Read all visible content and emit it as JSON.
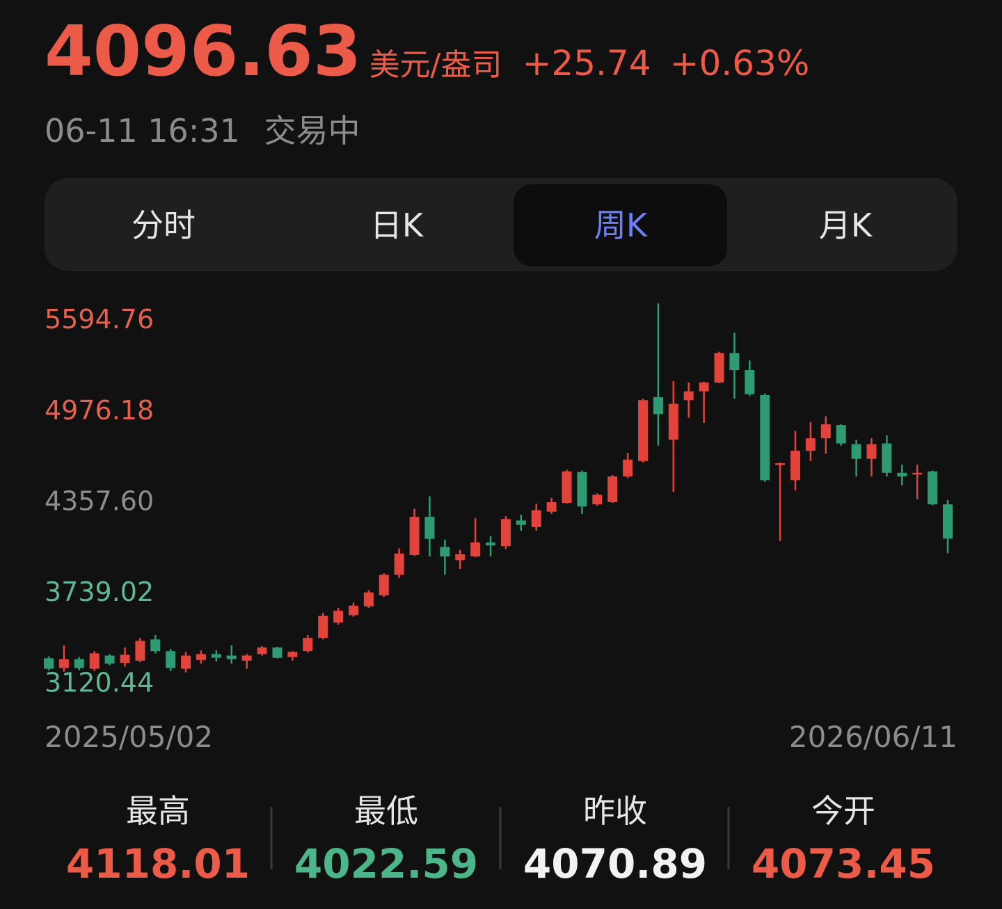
{
  "header": {
    "price": "4096.63",
    "unit": "美元/盎司",
    "change": "+25.74",
    "change_pct": "+0.63%",
    "timestamp": "06-11 16:31",
    "status": "交易中",
    "color": "#ec5a48"
  },
  "tabs": {
    "items": [
      "分时",
      "日K",
      "周K",
      "月K"
    ],
    "active": 2
  },
  "chart_data": {
    "type": "candlestick",
    "up_color": "#e2433b",
    "down_color": "#2f9b72",
    "categories": [
      "2025/05/02",
      null,
      null,
      null,
      null,
      null,
      null,
      null,
      null,
      null,
      null,
      null,
      null,
      null,
      null,
      null,
      null,
      null,
      null,
      null,
      null,
      null,
      null,
      null,
      null,
      null,
      null,
      null,
      null,
      null,
      null,
      null,
      null,
      null,
      null,
      null,
      null,
      null,
      null,
      null,
      null,
      null,
      null,
      null,
      null,
      null,
      null,
      null,
      null,
      null,
      null,
      null,
      null,
      null,
      null,
      null,
      null,
      null,
      null,
      "2026/06/11"
    ],
    "open": [
      3282,
      3215,
      3275,
      3210,
      3300,
      3250,
      3265,
      3410,
      3330,
      3210,
      3270,
      3310,
      3300,
      3265,
      3310,
      3355,
      3290,
      3330,
      3420,
      3525,
      3575,
      3635,
      3710,
      3850,
      3985,
      4245,
      4040,
      3950,
      3975,
      4070,
      4045,
      4220,
      4175,
      4280,
      4340,
      4550,
      4330,
      4345,
      4520,
      4625,
      5060,
      4770,
      5040,
      5100,
      5160,
      5360,
      5245,
      5075,
      4600,
      4495,
      4695,
      4780,
      4870,
      4740,
      4640,
      4745,
      4545,
      4535,
      4555,
      4330
    ],
    "high": [
      3295,
      3370,
      3290,
      3330,
      3310,
      3355,
      3420,
      3440,
      3345,
      3325,
      3335,
      3335,
      3370,
      3310,
      3365,
      3360,
      3330,
      3440,
      3590,
      3625,
      3660,
      3745,
      3860,
      4030,
      4300,
      4385,
      4090,
      4020,
      4235,
      4115,
      4250,
      4260,
      4335,
      4375,
      4565,
      4560,
      4405,
      4530,
      4680,
      5050,
      5699,
      5170,
      5160,
      5165,
      5370,
      5500,
      5310,
      5085,
      4615,
      4830,
      4890,
      4930,
      4875,
      4770,
      4780,
      4800,
      4600,
      4600,
      4560,
      4360
    ],
    "low": [
      3200,
      3190,
      3200,
      3195,
      3235,
      3225,
      3255,
      3315,
      3195,
      3185,
      3245,
      3260,
      3245,
      3210,
      3300,
      3280,
      3265,
      3320,
      3410,
      3510,
      3565,
      3625,
      3700,
      3830,
      3980,
      3975,
      3850,
      3890,
      3970,
      3975,
      4025,
      4150,
      4150,
      4265,
      4335,
      4265,
      4320,
      4340,
      4510,
      4615,
      4730,
      4415,
      4920,
      4885,
      5155,
      5050,
      5070,
      4485,
      4080,
      4425,
      4625,
      4675,
      4730,
      4520,
      4520,
      4520,
      4460,
      4365,
      4325,
      3998
    ],
    "close": [
      3210,
      3275,
      3215,
      3315,
      3245,
      3305,
      3400,
      3330,
      3215,
      3300,
      3310,
      3285,
      3275,
      3300,
      3355,
      3285,
      3325,
      3420,
      3570,
      3605,
      3640,
      3730,
      3850,
      3995,
      4245,
      4095,
      3975,
      3990,
      4070,
      4050,
      4230,
      4190,
      4290,
      4345,
      4555,
      4315,
      4395,
      4520,
      4635,
      5040,
      4945,
      5015,
      5100,
      5160,
      5360,
      5245,
      5080,
      4495,
      4610,
      4695,
      4780,
      4875,
      4745,
      4640,
      4740,
      4545,
      4520,
      4545,
      4330,
      4096.63
    ],
    "ylim": [
      3080,
      5700
    ],
    "yticks": [
      3120.44,
      3739.02,
      {
        "value": 4357.6,
        "label": "4357.60"
      },
      4976.18,
      5594.76
    ],
    "ytick_colors": [
      "#5fb894",
      "#5fb894",
      "#8e8e8e",
      "#e4604f",
      "#e4604f"
    ]
  },
  "stats": [
    {
      "label": "最高",
      "value": "4118.01",
      "color": "#ec5a48"
    },
    {
      "label": "最低",
      "value": "4022.59",
      "color": "#4db58a"
    },
    {
      "label": "昨收",
      "value": "4070.89",
      "color": "#f2f2f2"
    },
    {
      "label": "今开",
      "value": "4073.45",
      "color": "#ec5a48"
    }
  ]
}
